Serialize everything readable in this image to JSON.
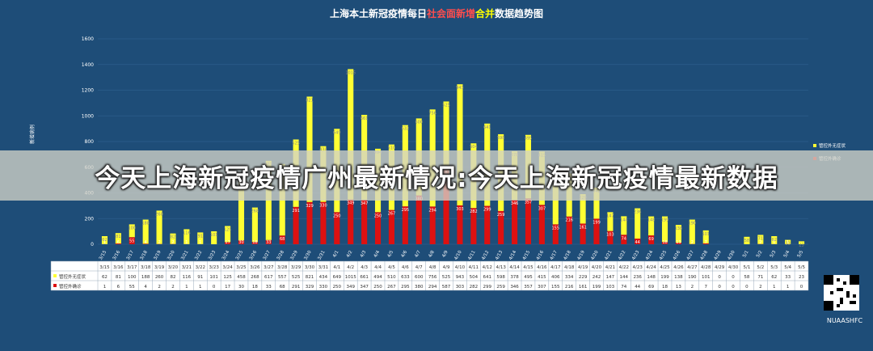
{
  "overlay": {
    "headline": "今天上海新冠疫情广州最新情况:今天上海新冠疫情最新数据"
  },
  "footer": {
    "handle": "NUAASHFC"
  },
  "colors": {
    "background": "#1e4d78",
    "asymptomatic": "#ffff33",
    "confirmed": "#dd1111",
    "grid": "#2c5e8c"
  },
  "chart_data": {
    "type": "bar",
    "stacked": true,
    "title": "上海本土新冠疫情每日社会面新增合并数据趋势图",
    "title_parts": [
      "上海本土新冠疫情每日",
      "社会面新增",
      "合并",
      "数据趋势图"
    ],
    "ylabel": "新增病例",
    "ylim": [
      0,
      1600
    ],
    "yticks": [
      0,
      200,
      400,
      600,
      800,
      1000,
      1200,
      1400,
      1600
    ],
    "grid": true,
    "legend_position": "right",
    "categories": [
      "3/15",
      "3/16",
      "3/17",
      "3/18",
      "3/19",
      "3/20",
      "3/21",
      "3/22",
      "3/23",
      "3/24",
      "3/25",
      "3/26",
      "3/27",
      "3/28",
      "3/29",
      "3/30",
      "3/31",
      "4/1",
      "4/2",
      "4/3",
      "4/4",
      "4/5",
      "4/6",
      "4/7",
      "4/8",
      "4/9",
      "4/10",
      "4/11",
      "4/12",
      "4/13",
      "4/14",
      "4/15",
      "4/16",
      "4/17",
      "4/18",
      "4/19",
      "4/20",
      "4/21",
      "4/22",
      "4/23",
      "4/24",
      "4/25",
      "4/26",
      "4/27",
      "4/28",
      "4/29",
      "4/30",
      "5/1",
      "5/2",
      "5/3",
      "5/4",
      "5/5"
    ],
    "series": [
      {
        "name": "管控外无症状",
        "color": "#ffff33",
        "values": [
          62,
          81,
          100,
          188,
          260,
          82,
          116,
          91,
          101,
          125,
          458,
          268,
          617,
          557,
          525,
          821,
          434,
          649,
          1015,
          661,
          494,
          510,
          633,
          600,
          756,
          525,
          943,
          504,
          641,
          598,
          378,
          495,
          415,
          406,
          334,
          229,
          242,
          147,
          144,
          236,
          148,
          199,
          138,
          190,
          101,
          0,
          0,
          58,
          71,
          62,
          33,
          23
        ]
      },
      {
        "name": "管控外确诊",
        "color": "#dd1111",
        "values": [
          1,
          6,
          55,
          4,
          2,
          2,
          1,
          1,
          0,
          17,
          30,
          18,
          33,
          68,
          291,
          329,
          330,
          250,
          349,
          347,
          250,
          267,
          295,
          380,
          294,
          587,
          303,
          282,
          299,
          259,
          346,
          357,
          307,
          155,
          216,
          161,
          199,
          103,
          74,
          44,
          69,
          18,
          13,
          2,
          7,
          0,
          0,
          0,
          2,
          1,
          1,
          0
        ]
      }
    ]
  }
}
